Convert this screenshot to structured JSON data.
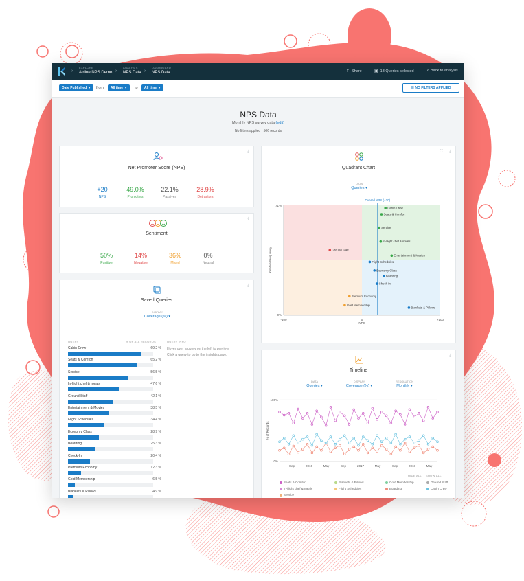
{
  "app": {
    "breadcrumbs": [
      {
        "small": "Explore",
        "big": "Airline NPS Demo"
      },
      {
        "small": "Analysis",
        "big": "NPS Data"
      },
      {
        "small": "Dashboard",
        "big": "NPS Data"
      }
    ],
    "actions": {
      "share": "Share",
      "queries": "13 Queries selected",
      "back": "Back to analysis"
    }
  },
  "filters": {
    "date_field": "Date Published",
    "from_label": "from",
    "from_value": "All time",
    "to_label": "to",
    "to_value": "All time",
    "no_filters": "NO FILTERS APPLIED"
  },
  "page": {
    "title": "NPS Data",
    "subtitle": "Monthly NPS survey data",
    "edit_link": "(edit)",
    "records": "No filters applied  ·  506 records"
  },
  "nps_card": {
    "title": "Net Promoter Score (NPS)",
    "metrics": [
      {
        "value": "+20",
        "label": "NPS",
        "color": "#1a7cc7"
      },
      {
        "value": "49.0%",
        "label": "Promoters",
        "color": "#3aa84a"
      },
      {
        "value": "22.1%",
        "label": "Passives",
        "color": "#555555"
      },
      {
        "value": "28.9%",
        "label": "Detractors",
        "color": "#e04848"
      }
    ]
  },
  "sentiment_card": {
    "title": "Sentiment",
    "metrics": [
      {
        "value": "50%",
        "label": "Positive",
        "color": "#3aa84a"
      },
      {
        "value": "14%",
        "label": "Negative",
        "color": "#e04848"
      },
      {
        "value": "36%",
        "label": "Mixed",
        "color": "#f0a030"
      },
      {
        "value": "0%",
        "label": "Neutral",
        "color": "#555555"
      }
    ]
  },
  "saved_queries": {
    "title": "Saved Queries",
    "display_label": "DISPLAY",
    "display_value": "Coverage (%)",
    "col_query": "QUERY",
    "col_pct": "% OF ALL RECORDS",
    "col_info": "QUERY INFO",
    "info_line1": "Hover over a query on the left to preview.",
    "info_line2": "Click a query to go to the insights page.",
    "rows": [
      {
        "name": "Cabin Crew",
        "pct": "69.2 %",
        "value": 69.2
      },
      {
        "name": "Seats & Comfort",
        "pct": "65.2 %",
        "value": 65.2
      },
      {
        "name": "Service",
        "pct": "56.5 %",
        "value": 56.5
      },
      {
        "name": "In-flight chef & meals",
        "pct": "47.6 %",
        "value": 47.6
      },
      {
        "name": "Ground Staff",
        "pct": "42.1 %",
        "value": 42.1
      },
      {
        "name": "Entertainment & Movies",
        "pct": "38.5 %",
        "value": 38.5
      },
      {
        "name": "Flight Schedules",
        "pct": "34.4 %",
        "value": 34.4
      },
      {
        "name": "Economy Class",
        "pct": "28.9 %",
        "value": 28.9
      },
      {
        "name": "Boarding",
        "pct": "25.3 %",
        "value": 25.3
      },
      {
        "name": "Check-In",
        "pct": "20.4 %",
        "value": 20.4
      },
      {
        "name": "Premium Economy",
        "pct": "12.3 %",
        "value": 12.3
      },
      {
        "name": "Gold Membership",
        "pct": "6.5 %",
        "value": 6.5
      },
      {
        "name": "Blankets & Pillows",
        "pct": "4.9 %",
        "value": 4.9
      }
    ]
  },
  "quadrant": {
    "title": "Quadrant Chart",
    "data_label": "DATA",
    "data_value": "Queries",
    "overall_label": "Overall NPS (+20)",
    "y_top": "71%",
    "y_bottom": "0%",
    "x_left": "-100",
    "x_mid": "0",
    "x_right": "+100",
    "xlabel": "NPS",
    "ylabel": "Relative Frequency"
  },
  "chart_data": [
    {
      "type": "scatter",
      "title": "Quadrant Chart",
      "xlabel": "NPS",
      "ylabel": "Relative Frequency",
      "xlim": [
        -100,
        100
      ],
      "ylim": [
        0,
        71
      ],
      "points": [
        {
          "label": "Cabin Crew",
          "x": 30,
          "y": 69.2,
          "color": "#3aa84a"
        },
        {
          "label": "Seats & Comfort",
          "x": 25,
          "y": 65.2,
          "color": "#3aa84a"
        },
        {
          "label": "Service",
          "x": 22,
          "y": 56.5,
          "color": "#3aa84a"
        },
        {
          "label": "In-flight chef & meals",
          "x": 24,
          "y": 47.6,
          "color": "#3aa84a"
        },
        {
          "label": "Ground Staff",
          "x": -41,
          "y": 42.1,
          "color": "#e04848"
        },
        {
          "label": "Entertainment & Movies",
          "x": 38,
          "y": 38.5,
          "color": "#3aa84a"
        },
        {
          "label": "Flight Schedules",
          "x": 10,
          "y": 34.4,
          "color": "#1a7cc7"
        },
        {
          "label": "Economy Class",
          "x": 16,
          "y": 28.9,
          "color": "#1a7cc7"
        },
        {
          "label": "Boarding",
          "x": 28,
          "y": 25.3,
          "color": "#1a7cc7"
        },
        {
          "label": "Check-In",
          "x": 19,
          "y": 20.4,
          "color": "#1a7cc7"
        },
        {
          "label": "Premium Economy",
          "x": -16,
          "y": 12.3,
          "color": "#f0a030"
        },
        {
          "label": "Gold Membership",
          "x": -22,
          "y": 6.5,
          "color": "#f0a030"
        },
        {
          "label": "Blankets & Pillows",
          "x": 60,
          "y": 4.9,
          "color": "#1a7cc7"
        }
      ]
    },
    {
      "type": "line",
      "title": "Timeline",
      "ylabel": "% of Records",
      "ylim": [
        0,
        100
      ],
      "y_ticks": [
        "100%",
        "0%"
      ],
      "x_ticks": [
        "Sep",
        "2016",
        "May",
        "Sep",
        "2017",
        "May",
        "Sep",
        "2018",
        "May"
      ],
      "series": [
        {
          "name": "Seats & Comfort",
          "color": "#cc5fc6",
          "values": [
            80,
            75,
            78,
            62,
            85,
            70,
            78,
            60,
            82,
            72,
            58,
            88,
            66,
            80,
            74,
            60,
            84,
            70,
            78,
            62,
            86,
            68,
            80,
            74,
            62,
            82,
            76,
            60,
            84,
            72,
            78,
            66,
            88,
            70,
            80
          ]
        },
        {
          "name": "Blankets & Pillows",
          "color": "#b8d98a",
          "values": []
        },
        {
          "name": "Gold Membership",
          "color": "#7fd0a0",
          "values": []
        },
        {
          "name": "Ground Staff",
          "color": "#aaaaaa",
          "values": []
        },
        {
          "name": "In-flight chef & meals",
          "color": "#d58ad6",
          "values": []
        },
        {
          "name": "Flight Schedules",
          "color": "#f5c77a",
          "values": []
        },
        {
          "name": "Boarding",
          "color": "#f08c7a",
          "values": [
            18,
            22,
            12,
            25,
            15,
            20,
            28,
            14,
            24,
            18,
            30,
            16,
            22,
            26,
            12,
            20,
            24,
            18,
            28,
            14,
            22,
            16,
            26,
            20,
            12,
            24,
            18,
            30,
            16,
            22,
            26,
            14,
            20,
            24,
            18
          ]
        },
        {
          "name": "Cabin Crew",
          "color": "#6cc3e0",
          "values": [
            32,
            38,
            28,
            42,
            30,
            36,
            40,
            26,
            44,
            34,
            30,
            40,
            28,
            36,
            42,
            30,
            38,
            26,
            40,
            34,
            28,
            42,
            32,
            38,
            30,
            44,
            28,
            36,
            40,
            30,
            34,
            42,
            28,
            38,
            32
          ]
        },
        {
          "name": "Service",
          "color": "#f0b27a",
          "values": []
        }
      ]
    }
  ],
  "timeline": {
    "title": "Timeline",
    "data_label": "DATA",
    "data_value": "Queries",
    "display_label": "DISPLAY",
    "display_value": "Coverage (%)",
    "resolution_label": "RESOLUTION",
    "resolution_value": "Monthly",
    "y_top": "100%",
    "y_bottom": "0%",
    "ylabel": "% of Records",
    "hide_all": "HIDE ALL",
    "show_all": "SHOW ALL"
  },
  "colors": {
    "brand": "#1a7cc7",
    "topbar": "#14303c",
    "coral": "#f87470"
  }
}
